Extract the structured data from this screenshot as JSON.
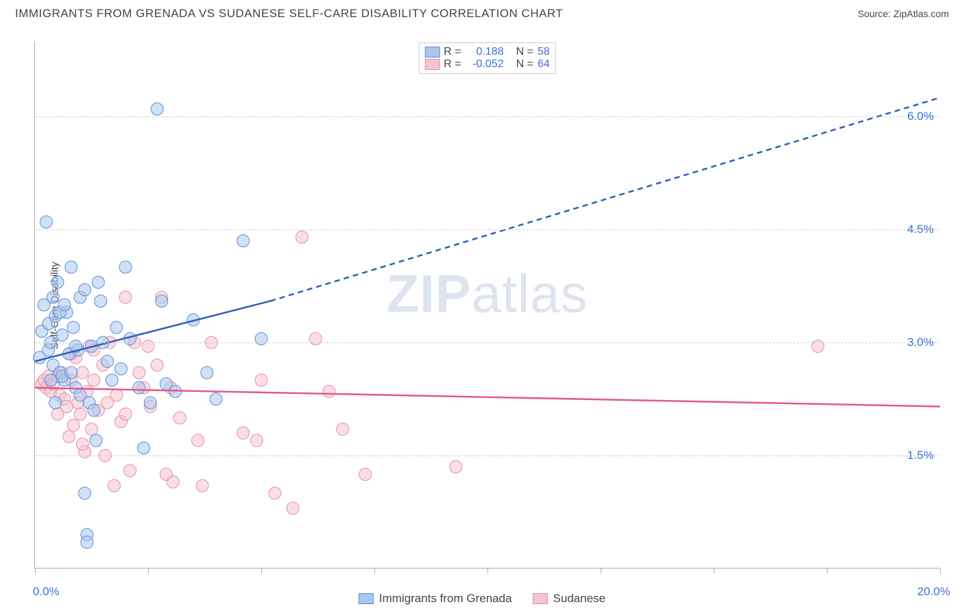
{
  "header": {
    "title": "IMMIGRANTS FROM GRENADA VS SUDANESE SELF-CARE DISABILITY CORRELATION CHART",
    "source_label": "Source:",
    "source_name": "ZipAtlas.com"
  },
  "chart": {
    "type": "scatter",
    "watermark_bold": "ZIP",
    "watermark_rest": "atlas",
    "ylabel": "Self-Care Disability",
    "xlim": [
      0,
      20
    ],
    "ylim": [
      0,
      7
    ],
    "xtick_positions": [
      0,
      2.5,
      5,
      7.5,
      10,
      12.5,
      15,
      17.5,
      20
    ],
    "ygrid_positions": [
      1.5,
      3.0,
      4.5,
      6.0
    ],
    "xtick_labels": {
      "start": "0.0%",
      "end": "20.0%"
    },
    "ytick_labels": [
      "1.5%",
      "3.0%",
      "4.5%",
      "6.0%"
    ],
    "colors": {
      "blue_fill": "#a9c6ec",
      "blue_stroke": "#5a8fd6",
      "blue_line": "#2e5fb8",
      "pink_fill": "#f6c3d0",
      "pink_stroke": "#e48faa",
      "pink_line": "#e05a8a",
      "grid": "#cccccc",
      "axis": "#aaaaaa",
      "text_dark": "#444444",
      "text_blue": "#3b6fd6"
    },
    "marker_radius": 9,
    "marker_opacity": 0.55,
    "stats_legend": [
      {
        "swatch": "blue",
        "r_label": "R =",
        "r_value": "0.188",
        "n_label": "N =",
        "n_value": "58"
      },
      {
        "swatch": "pink",
        "r_label": "R =",
        "r_value": "-0.052",
        "n_label": "N =",
        "n_value": "64"
      }
    ],
    "series_legend": [
      {
        "swatch": "blue",
        "label": "Immigrants from Grenada"
      },
      {
        "swatch": "pink",
        "label": "Sudanese"
      }
    ],
    "trend_lines": {
      "blue": {
        "x1": 0,
        "y1": 2.75,
        "x2_solid": 5.2,
        "y2_solid": 3.55,
        "x2_dash": 20,
        "y2_dash": 6.25
      },
      "pink": {
        "x1": 0,
        "y1": 2.4,
        "x2": 20,
        "y2": 2.15
      }
    },
    "blue_points": [
      [
        0.1,
        2.8
      ],
      [
        0.15,
        3.15
      ],
      [
        0.2,
        3.5
      ],
      [
        0.25,
        4.6
      ],
      [
        0.3,
        2.9
      ],
      [
        0.3,
        3.25
      ],
      [
        0.35,
        3.0
      ],
      [
        0.4,
        3.6
      ],
      [
        0.4,
        2.7
      ],
      [
        0.45,
        3.35
      ],
      [
        0.5,
        3.8
      ],
      [
        0.55,
        2.6
      ],
      [
        0.6,
        3.1
      ],
      [
        0.65,
        2.5
      ],
      [
        0.7,
        3.4
      ],
      [
        0.75,
        2.85
      ],
      [
        0.8,
        4.0
      ],
      [
        0.85,
        3.2
      ],
      [
        0.9,
        2.4
      ],
      [
        0.95,
        2.9
      ],
      [
        1.0,
        2.3
      ],
      [
        1.0,
        3.6
      ],
      [
        1.1,
        3.7
      ],
      [
        1.1,
        1.0
      ],
      [
        1.15,
        0.45
      ],
      [
        1.15,
        0.35
      ],
      [
        1.2,
        2.2
      ],
      [
        1.25,
        2.95
      ],
      [
        1.3,
        2.1
      ],
      [
        1.35,
        1.7
      ],
      [
        1.4,
        3.8
      ],
      [
        1.45,
        3.55
      ],
      [
        1.5,
        3.0
      ],
      [
        1.6,
        2.75
      ],
      [
        1.7,
        2.5
      ],
      [
        1.8,
        3.2
      ],
      [
        1.9,
        2.65
      ],
      [
        2.0,
        4.0
      ],
      [
        2.1,
        3.05
      ],
      [
        2.3,
        2.4
      ],
      [
        2.4,
        1.6
      ],
      [
        2.55,
        2.2
      ],
      [
        2.7,
        6.1
      ],
      [
        2.8,
        3.55
      ],
      [
        2.9,
        2.45
      ],
      [
        3.1,
        2.35
      ],
      [
        3.5,
        3.3
      ],
      [
        3.8,
        2.6
      ],
      [
        4.0,
        2.25
      ],
      [
        4.6,
        4.35
      ],
      [
        5.0,
        3.05
      ],
      [
        0.35,
        2.5
      ],
      [
        0.6,
        2.55
      ],
      [
        0.55,
        3.4
      ],
      [
        0.8,
        2.6
      ],
      [
        0.45,
        2.2
      ],
      [
        0.65,
        3.5
      ],
      [
        0.9,
        2.95
      ]
    ],
    "pink_points": [
      [
        0.15,
        2.45
      ],
      [
        0.2,
        2.5
      ],
      [
        0.25,
        2.4
      ],
      [
        0.3,
        2.55
      ],
      [
        0.35,
        2.35
      ],
      [
        0.4,
        2.45
      ],
      [
        0.5,
        2.55
      ],
      [
        0.55,
        2.3
      ],
      [
        0.6,
        2.6
      ],
      [
        0.65,
        2.25
      ],
      [
        0.7,
        2.15
      ],
      [
        0.75,
        1.75
      ],
      [
        0.8,
        2.5
      ],
      [
        0.85,
        1.9
      ],
      [
        0.9,
        2.8
      ],
      [
        0.95,
        2.2
      ],
      [
        1.0,
        2.05
      ],
      [
        1.05,
        2.6
      ],
      [
        1.1,
        1.55
      ],
      [
        1.15,
        2.35
      ],
      [
        1.2,
        2.95
      ],
      [
        1.25,
        1.85
      ],
      [
        1.3,
        2.5
      ],
      [
        1.4,
        2.1
      ],
      [
        1.5,
        2.7
      ],
      [
        1.55,
        1.5
      ],
      [
        1.65,
        3.0
      ],
      [
        1.75,
        1.1
      ],
      [
        1.8,
        2.3
      ],
      [
        1.9,
        1.95
      ],
      [
        2.0,
        3.6
      ],
      [
        2.1,
        1.3
      ],
      [
        2.2,
        3.0
      ],
      [
        2.3,
        2.6
      ],
      [
        2.5,
        2.95
      ],
      [
        2.55,
        2.15
      ],
      [
        2.7,
        2.7
      ],
      [
        2.8,
        3.6
      ],
      [
        2.9,
        1.25
      ],
      [
        3.0,
        2.4
      ],
      [
        3.05,
        1.15
      ],
      [
        3.2,
        2.0
      ],
      [
        3.6,
        1.7
      ],
      [
        3.7,
        1.1
      ],
      [
        3.9,
        3.0
      ],
      [
        4.6,
        1.8
      ],
      [
        4.9,
        1.7
      ],
      [
        5.0,
        2.5
      ],
      [
        5.3,
        1.0
      ],
      [
        5.7,
        0.8
      ],
      [
        5.9,
        4.4
      ],
      [
        6.2,
        3.05
      ],
      [
        6.5,
        2.35
      ],
      [
        6.8,
        1.85
      ],
      [
        7.3,
        1.25
      ],
      [
        9.3,
        1.35
      ],
      [
        0.5,
        2.05
      ],
      [
        0.8,
        2.85
      ],
      [
        1.05,
        1.65
      ],
      [
        1.3,
        2.9
      ],
      [
        1.6,
        2.2
      ],
      [
        2.0,
        2.05
      ],
      [
        2.4,
        2.4
      ],
      [
        17.3,
        2.95
      ]
    ]
  }
}
